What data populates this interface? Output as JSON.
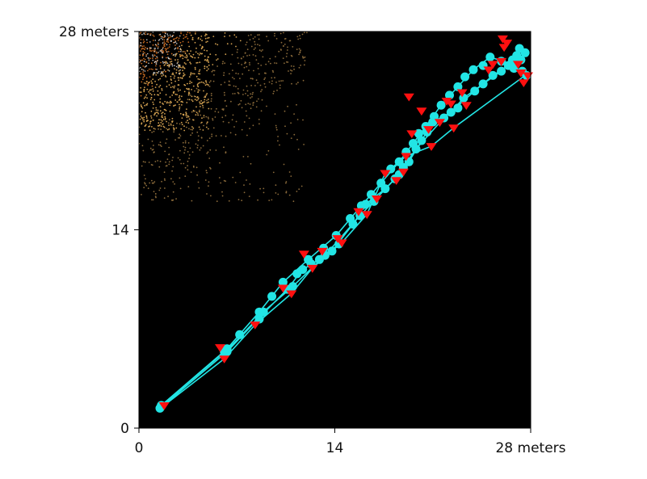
{
  "chart_data": {
    "type": "scatter",
    "title": "",
    "xlabel": "",
    "ylabel": "",
    "xlim": [
      0,
      28
    ],
    "ylim": [
      0,
      28
    ],
    "grid": false,
    "x_ticks": [
      {
        "value": 0,
        "label": "0"
      },
      {
        "value": 14,
        "label": "14"
      },
      {
        "value": 28,
        "label": "28 meters"
      }
    ],
    "y_ticks": [
      {
        "value": 0,
        "label": "0"
      },
      {
        "value": 14,
        "label": "14"
      },
      {
        "value": 28,
        "label": "28 meters"
      }
    ],
    "background": {
      "color": "#000000",
      "point_colors": [
        "#c8c8c8",
        "#c0661f",
        "#d2a050",
        "#8a6a3a"
      ],
      "description_note": ""
    },
    "series": [
      {
        "marker": "circle",
        "color": "#22e5e5",
        "points": [
          [
            1.5,
            1.4
          ],
          [
            6.1,
            5.4
          ],
          [
            6.3,
            5.4
          ],
          [
            8.6,
            7.7
          ],
          [
            8.9,
            8.2
          ],
          [
            10.6,
            9.8
          ],
          [
            11.0,
            10.0
          ],
          [
            11.7,
            11.2
          ],
          [
            12.3,
            11.6
          ],
          [
            12.9,
            11.9
          ],
          [
            13.3,
            12.2
          ],
          [
            13.8,
            12.5
          ],
          [
            14.3,
            13.0
          ],
          [
            15.3,
            14.4
          ],
          [
            15.8,
            15.0
          ],
          [
            16.2,
            15.8
          ],
          [
            16.8,
            16.0
          ],
          [
            17.6,
            16.9
          ],
          [
            18.3,
            17.6
          ],
          [
            18.6,
            17.9
          ],
          [
            18.9,
            18.4
          ],
          [
            19.3,
            18.8
          ],
          [
            19.8,
            19.7
          ],
          [
            20.2,
            20.3
          ],
          [
            20.6,
            20.9
          ],
          [
            21.0,
            21.6
          ],
          [
            21.8,
            21.9
          ],
          [
            22.3,
            22.3
          ],
          [
            22.8,
            22.6
          ],
          [
            23.2,
            23.3
          ],
          [
            24.0,
            23.8
          ],
          [
            24.6,
            24.3
          ],
          [
            25.3,
            24.9
          ],
          [
            25.9,
            25.2
          ],
          [
            26.4,
            25.6
          ],
          [
            26.7,
            26.0
          ],
          [
            27.0,
            26.3
          ],
          [
            27.3,
            26.0
          ],
          [
            27.6,
            26.5
          ],
          [
            27.2,
            26.8
          ],
          [
            26.8,
            25.4
          ],
          [
            27.4,
            25.2
          ],
          [
            27.7,
            24.9
          ],
          [
            26.6,
            25.7
          ],
          [
            25.9,
            25.9
          ],
          [
            25.1,
            26.2
          ],
          [
            24.6,
            25.6
          ],
          [
            23.9,
            25.3
          ],
          [
            23.3,
            24.8
          ],
          [
            22.8,
            24.1
          ],
          [
            22.2,
            23.5
          ],
          [
            21.6,
            22.8
          ],
          [
            21.1,
            22.0
          ],
          [
            20.5,
            21.3
          ],
          [
            20.0,
            20.8
          ],
          [
            19.6,
            20.1
          ],
          [
            19.1,
            19.5
          ],
          [
            18.6,
            18.8
          ],
          [
            18.0,
            18.3
          ],
          [
            17.3,
            17.3
          ],
          [
            16.6,
            16.5
          ],
          [
            15.9,
            15.7
          ],
          [
            15.1,
            14.8
          ],
          [
            14.1,
            13.6
          ],
          [
            13.2,
            12.7
          ],
          [
            12.1,
            11.9
          ],
          [
            11.3,
            10.9
          ],
          [
            10.3,
            10.3
          ],
          [
            9.5,
            9.3
          ],
          [
            8.6,
            8.2
          ],
          [
            7.2,
            6.6
          ],
          [
            6.3,
            5.6
          ],
          [
            1.6,
            1.6
          ]
        ]
      },
      {
        "marker": "triangle-down",
        "color": "#ff1010",
        "points": [
          [
            1.8,
            1.6
          ],
          [
            5.8,
            5.7
          ],
          [
            6.1,
            4.9
          ],
          [
            8.3,
            7.3
          ],
          [
            10.3,
            9.9
          ],
          [
            10.9,
            9.5
          ],
          [
            11.8,
            12.3
          ],
          [
            12.4,
            11.3
          ],
          [
            13.1,
            12.5
          ],
          [
            14.2,
            13.4
          ],
          [
            14.5,
            13.1
          ],
          [
            15.7,
            15.3
          ],
          [
            16.3,
            15.1
          ],
          [
            17.0,
            16.2
          ],
          [
            17.6,
            18.0
          ],
          [
            18.4,
            17.5
          ],
          [
            18.9,
            18.1
          ],
          [
            19.1,
            19.2
          ],
          [
            19.5,
            20.8
          ],
          [
            19.3,
            23.4
          ],
          [
            20.2,
            22.4
          ],
          [
            20.7,
            21.1
          ],
          [
            20.9,
            19.9
          ],
          [
            21.5,
            21.6
          ],
          [
            22.5,
            21.2
          ],
          [
            22.3,
            22.9
          ],
          [
            22.0,
            23.1
          ],
          [
            23.4,
            22.8
          ],
          [
            23.1,
            23.7
          ],
          [
            25.0,
            25.3
          ],
          [
            25.3,
            25.7
          ],
          [
            25.9,
            25.9
          ],
          [
            26.1,
            26.9
          ],
          [
            26.3,
            27.2
          ],
          [
            26.0,
            27.5
          ],
          [
            27.1,
            25.7
          ],
          [
            27.3,
            25.1
          ],
          [
            27.5,
            24.4
          ],
          [
            27.8,
            24.9
          ]
        ]
      }
    ],
    "path": {
      "color": "#22e5e5",
      "points": [
        [
          1.5,
          1.4
        ],
        [
          6.3,
          5.4
        ],
        [
          8.6,
          7.8
        ],
        [
          10.6,
          9.8
        ],
        [
          11.7,
          11.2
        ],
        [
          12.9,
          11.9
        ],
        [
          13.8,
          12.5
        ],
        [
          15.3,
          14.4
        ],
        [
          16.2,
          15.8
        ],
        [
          17.6,
          16.9
        ],
        [
          18.6,
          17.9
        ],
        [
          19.3,
          18.8
        ],
        [
          20.2,
          20.3
        ],
        [
          21.0,
          21.6
        ],
        [
          22.3,
          22.3
        ],
        [
          23.2,
          23.3
        ],
        [
          24.6,
          24.3
        ],
        [
          25.9,
          25.2
        ],
        [
          26.7,
          26.0
        ],
        [
          27.2,
          26.8
        ],
        [
          26.6,
          25.7
        ],
        [
          25.1,
          26.2
        ],
        [
          23.9,
          25.3
        ],
        [
          22.8,
          24.1
        ],
        [
          21.6,
          22.8
        ],
        [
          20.5,
          21.3
        ],
        [
          19.6,
          20.1
        ],
        [
          18.6,
          18.8
        ],
        [
          17.3,
          17.3
        ],
        [
          15.9,
          15.7
        ],
        [
          14.1,
          13.6
        ],
        [
          12.1,
          11.9
        ],
        [
          10.3,
          10.3
        ],
        [
          8.6,
          8.2
        ],
        [
          6.3,
          5.6
        ],
        [
          1.6,
          1.6
        ],
        [
          6.5,
          5.7
        ],
        [
          9.0,
          8.3
        ],
        [
          11.0,
          10.0
        ],
        [
          13.3,
          12.2
        ],
        [
          15.8,
          15.0
        ],
        [
          18.3,
          17.6
        ],
        [
          19.8,
          19.7
        ],
        [
          21.8,
          21.9
        ],
        [
          24.0,
          23.8
        ],
        [
          25.3,
          24.9
        ],
        [
          26.4,
          25.6
        ],
        [
          27.6,
          24.9
        ],
        [
          22.5,
          21.2
        ],
        [
          20.9,
          19.9
        ],
        [
          19.1,
          19.2
        ],
        [
          17.6,
          18.0
        ],
        [
          16.3,
          15.1
        ],
        [
          14.5,
          13.1
        ],
        [
          12.4,
          11.3
        ],
        [
          10.9,
          9.5
        ],
        [
          8.3,
          7.3
        ],
        [
          6.1,
          4.9
        ],
        [
          1.8,
          1.6
        ]
      ]
    }
  }
}
